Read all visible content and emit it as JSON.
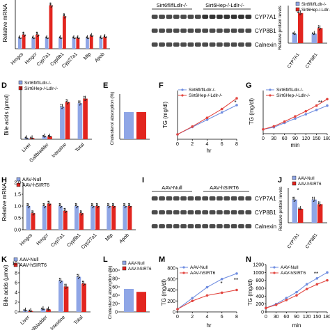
{
  "colors": {
    "blue": "#8fa6e6",
    "red": "#e2251f",
    "blue_line": "#6f8de0",
    "red_line": "#e2453f"
  },
  "panels": {
    "A": {
      "ylabel": "Relative mRNA",
      "genes": [
        "Hmgcs",
        "Hmgcr",
        "Cyp7a1",
        "Cyp8b1",
        "Cyp27a1",
        "Mtp",
        "Apob"
      ]
    },
    "B": {
      "group1": "Sirt6fl/flLdlr-/-",
      "group2": "Sirt6Hep-/-Ldlr-/-",
      "bands": [
        "CYP7A1",
        "CYP8B1",
        "Calnexin"
      ]
    },
    "C": {
      "ylabel": "Relative protein levels",
      "legend": [
        "Sirt6fl/flLdlr-/-",
        "Sirt6Hep-/-Ldlr-/-"
      ],
      "xticks": [
        "CYP7A1",
        "CYP8B1"
      ],
      "sig": "*"
    },
    "D": {
      "letter": "D",
      "ylabel": "Bile acids (μmol)",
      "legend": [
        "Sirt6fl/flLdlr-/-",
        "Sirt6Hep-/-Ldlr-/-"
      ],
      "categories": [
        "Liver",
        "Gallbladder",
        "Intestine",
        "Total"
      ]
    },
    "E": {
      "letter": "E",
      "ylabel": "Cholesterol absorption (%)"
    },
    "F": {
      "letter": "F",
      "ylabel": "TG (mg/dl)",
      "xlabel": "hr",
      "legend": [
        "Sirt6fl/flLdlr-/-",
        "Sirt6Hep-/-Ldlr-/-"
      ],
      "xticks": [
        "0",
        "2",
        "4",
        "6",
        "8"
      ],
      "sig": "*"
    },
    "G": {
      "letter": "G",
      "ylabel": "TG (mg/dl)",
      "xlabel": "min",
      "legend": [
        "Sirt6fl/flLdlr-/-",
        "Sirt6Hep-/-Ldlr-/-"
      ],
      "xticks": [
        "0",
        "30",
        "60",
        "90",
        "120",
        "150",
        "180"
      ],
      "sig": "**"
    },
    "H": {
      "letter": "H",
      "ylabel": "Relative mRNA",
      "legend": [
        "AAV-Null",
        "AAV-hSIRT6"
      ],
      "genes": [
        "Hmgcs",
        "Hmgcr",
        "Cyp7a1",
        "Cyp8b1",
        "Cyp27a1",
        "Mtp",
        "Apob"
      ],
      "yticks": [
        "0.0",
        "0.5",
        "1.0",
        "1.5",
        "2.0"
      ]
    },
    "I": {
      "letter": "I",
      "group1": "AAV-Null",
      "group2": "AAV-hSIRT6",
      "bands": [
        "CYP7A1",
        "CYP8B1",
        "Calnexin"
      ]
    },
    "J": {
      "letter": "J",
      "ylabel": "Relative protein levels",
      "legend": [
        "AAV-Null",
        "AAV-hSIRT6"
      ],
      "xticks": [
        "CYP7A1",
        "CYP8B1"
      ],
      "sig": "*"
    },
    "K": {
      "letter": "K",
      "ylabel": "Bile acids (μmol)",
      "legend": [
        "AAV-Null",
        "AAV-hSIRT6"
      ],
      "categories": [
        "Liver",
        "Gallbladder",
        "Intestine",
        "Total"
      ],
      "yticks": [
        "0",
        "2",
        "4",
        "6",
        "8",
        "10"
      ]
    },
    "L": {
      "letter": "L",
      "ylabel": "Cholesterol absorption (%)",
      "legend": [
        "AAV-Null",
        "AAV-hSIRT6"
      ],
      "yticks": [
        "0",
        "20",
        "40",
        "60",
        "80",
        "100"
      ]
    },
    "M": {
      "letter": "M",
      "ylabel": "TG (mg/dl)",
      "xlabel": "hr",
      "legend": [
        "AAV-Null",
        "AAV-hSIRT6"
      ],
      "xticks": [
        "0",
        "2",
        "4",
        "6",
        "8"
      ],
      "yticks": [
        "0",
        "200",
        "400",
        "600",
        "800"
      ],
      "sig": [
        "*",
        "**"
      ]
    },
    "N": {
      "letter": "N",
      "ylabel": "TG (mg/dl)",
      "xlabel": "min",
      "legend": [
        "AAV-Null",
        "AAV-hSIRT6"
      ],
      "xticks": [
        "0",
        "30",
        "60",
        "90",
        "120",
        "150",
        "180"
      ],
      "yticks": [
        "0",
        "200",
        "400",
        "600",
        "800",
        "1000",
        "1200"
      ],
      "sig": "**"
    }
  },
  "chart_data": [
    {
      "panel": "A",
      "type": "bar",
      "categories": [
        "Hmgcs",
        "Hmgcr",
        "Cyp7a1",
        "Cyp8b1",
        "Cyp27a1",
        "Mtp",
        "Apob"
      ],
      "series": [
        {
          "name": "Sirt6fl/flLdlr-/-",
          "values": [
            1.0,
            1.0,
            1.0,
            1.0,
            1.0,
            1.0,
            1.0
          ]
        },
        {
          "name": "Sirt6Hep-/-Ldlr-/-",
          "values": [
            1.3,
            1.3,
            4.0,
            3.0,
            1.0,
            1.2,
            1.1
          ]
        }
      ]
    },
    {
      "panel": "C",
      "type": "bar",
      "categories": [
        "CYP7A1",
        "CYP8B1"
      ],
      "series": [
        {
          "name": "Sirt6fl/flLdlr-/-",
          "values": [
            1.0,
            1.0
          ]
        },
        {
          "name": "Sirt6Hep-/-Ldlr-/-",
          "values": [
            3.2,
            1.6
          ]
        }
      ]
    },
    {
      "panel": "D",
      "type": "bar",
      "categories": [
        "Liver",
        "Gallbladder",
        "Intestine",
        "Total"
      ],
      "series": [
        {
          "name": "Sirt6fl/flLdlr-/-",
          "values": [
            0.2,
            0.5,
            5.6,
            6.2
          ]
        },
        {
          "name": "Sirt6Hep-/-Ldlr-/-",
          "values": [
            0.2,
            0.5,
            6.4,
            7.0
          ]
        }
      ]
    },
    {
      "panel": "E",
      "type": "bar",
      "categories": [
        "Sirt6fl/flLdlr-/-",
        "Sirt6Hep-/-Ldlr-/-"
      ],
      "values": [
        60,
        60
      ]
    },
    {
      "panel": "F",
      "type": "line",
      "x": [
        0,
        2,
        4,
        6,
        8
      ],
      "series": [
        {
          "name": "Sirt6fl/flLdlr-/-",
          "values": [
            100,
            250,
            400,
            550,
            700
          ]
        },
        {
          "name": "Sirt6Hep-/-Ldlr-/-",
          "values": [
            100,
            260,
            440,
            620,
            840
          ]
        }
      ]
    },
    {
      "panel": "G",
      "type": "line",
      "x": [
        0,
        30,
        60,
        90,
        120,
        150,
        180
      ],
      "series": [
        {
          "name": "Sirt6fl/flLdlr-/-",
          "values": [
            100,
            150,
            250,
            350,
            450,
            550,
            650
          ]
        },
        {
          "name": "Sirt6Hep-/-Ldlr-/-",
          "values": [
            100,
            170,
            280,
            400,
            520,
            650,
            800
          ]
        }
      ]
    },
    {
      "panel": "H",
      "type": "bar",
      "categories": [
        "Hmgcs",
        "Hmgcr",
        "Cyp7a1",
        "Cyp8b1",
        "Cyp27a1",
        "Mtp",
        "Apob"
      ],
      "series": [
        {
          "name": "AAV-Null",
          "values": [
            1.0,
            1.0,
            1.0,
            1.0,
            1.0,
            1.0,
            1.0
          ]
        },
        {
          "name": "AAV-hSIRT6",
          "values": [
            0.7,
            1.1,
            0.8,
            0.7,
            1.0,
            1.0,
            1.0
          ]
        }
      ]
    },
    {
      "panel": "J",
      "type": "bar",
      "categories": [
        "CYP7A1",
        "CYP8B1"
      ],
      "series": [
        {
          "name": "AAV-Null",
          "values": [
            1.0,
            1.0
          ]
        },
        {
          "name": "AAV-hSIRT6",
          "values": [
            0.6,
            0.8
          ]
        }
      ]
    },
    {
      "panel": "K",
      "type": "bar",
      "categories": [
        "Liver",
        "Gallbladder",
        "Intestine",
        "Total"
      ],
      "series": [
        {
          "name": "AAV-Null",
          "values": [
            0.3,
            0.6,
            6.4,
            7.2
          ]
        },
        {
          "name": "AAV-hSIRT6",
          "values": [
            0.2,
            0.5,
            5.2,
            5.8
          ]
        }
      ]
    },
    {
      "panel": "L",
      "type": "bar",
      "categories": [
        "AAV-Null",
        "AAV-hSIRT6"
      ],
      "values": [
        55,
        48
      ]
    },
    {
      "panel": "M",
      "type": "line",
      "x": [
        0,
        2,
        4,
        6,
        8
      ],
      "series": [
        {
          "name": "AAV-Null",
          "values": [
            50,
            250,
            450,
            600,
            700
          ]
        },
        {
          "name": "AAV-hSIRT6",
          "values": [
            50,
            200,
            300,
            350,
            400
          ]
        }
      ]
    },
    {
      "panel": "N",
      "type": "line",
      "x": [
        0,
        30,
        60,
        90,
        120,
        150,
        180
      ],
      "series": [
        {
          "name": "AAV-Null",
          "values": [
            100,
            200,
            350,
            500,
            700,
            850,
            1000
          ]
        },
        {
          "name": "AAV-hSIRT6",
          "values": [
            100,
            180,
            300,
            420,
            580,
            700,
            800
          ]
        }
      ]
    }
  ]
}
